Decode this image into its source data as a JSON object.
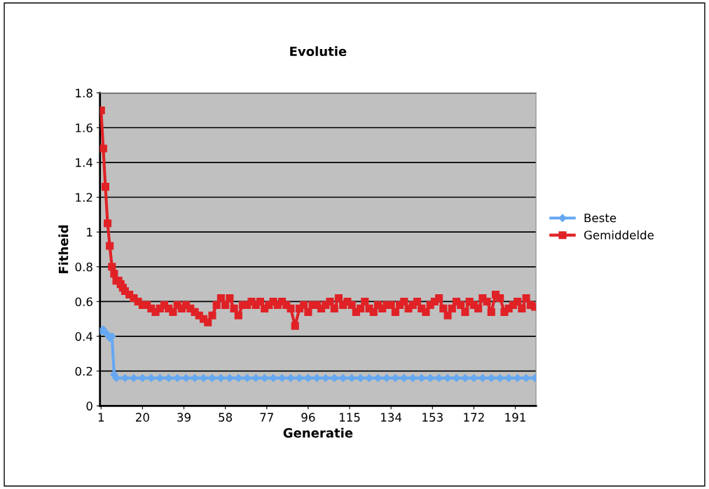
{
  "chart_data": {
    "type": "line",
    "title": "Evolutie",
    "xlabel": "Generatie",
    "ylabel": "Fitheid",
    "x": [
      1,
      2,
      3,
      4,
      5,
      6,
      7,
      8,
      9,
      10,
      11,
      12,
      14,
      16,
      18,
      20,
      22,
      24,
      26,
      28,
      30,
      32,
      34,
      36,
      38,
      40,
      42,
      44,
      46,
      48,
      50,
      52,
      54,
      56,
      58,
      60,
      62,
      64,
      66,
      68,
      70,
      72,
      74,
      76,
      78,
      80,
      82,
      84,
      86,
      88,
      90,
      92,
      94,
      96,
      98,
      100,
      102,
      104,
      106,
      108,
      110,
      112,
      114,
      116,
      118,
      120,
      122,
      124,
      126,
      128,
      130,
      132,
      134,
      136,
      138,
      140,
      142,
      144,
      146,
      148,
      150,
      152,
      154,
      156,
      158,
      160,
      162,
      164,
      166,
      168,
      170,
      172,
      174,
      176,
      178,
      180,
      182,
      184,
      186,
      188,
      190,
      192,
      194,
      196,
      198,
      200
    ],
    "series": [
      {
        "name": "Beste",
        "color": "#66a8f2",
        "marker": "diamond",
        "x": [
          1,
          2,
          3,
          4,
          5,
          6,
          7,
          8,
          12,
          16,
          20,
          24,
          28,
          32,
          36,
          40,
          44,
          48,
          52,
          56,
          60,
          64,
          68,
          72,
          76,
          80,
          84,
          88,
          92,
          96,
          100,
          104,
          108,
          112,
          116,
          120,
          124,
          128,
          132,
          136,
          140,
          144,
          148,
          152,
          156,
          160,
          164,
          168,
          172,
          176,
          180,
          184,
          188,
          192,
          196,
          200
        ],
        "values": [
          0.43,
          0.44,
          0.42,
          0.41,
          0.39,
          0.4,
          0.18,
          0.16,
          0.16,
          0.16,
          0.16,
          0.16,
          0.16,
          0.16,
          0.16,
          0.16,
          0.16,
          0.16,
          0.16,
          0.16,
          0.16,
          0.16,
          0.16,
          0.16,
          0.16,
          0.16,
          0.16,
          0.16,
          0.16,
          0.16,
          0.16,
          0.16,
          0.16,
          0.16,
          0.16,
          0.16,
          0.16,
          0.16,
          0.16,
          0.16,
          0.16,
          0.16,
          0.16,
          0.16,
          0.16,
          0.16,
          0.16,
          0.16,
          0.16,
          0.16,
          0.16,
          0.16,
          0.16,
          0.16,
          0.16,
          0.16
        ]
      },
      {
        "name": "Gemiddelde",
        "color": "#e02226",
        "marker": "square",
        "values": [
          1.7,
          1.48,
          1.26,
          1.05,
          0.92,
          0.8,
          0.76,
          0.72,
          0.72,
          0.7,
          0.68,
          0.66,
          0.64,
          0.62,
          0.6,
          0.58,
          0.58,
          0.56,
          0.54,
          0.56,
          0.58,
          0.56,
          0.54,
          0.58,
          0.56,
          0.58,
          0.56,
          0.54,
          0.52,
          0.5,
          0.48,
          0.52,
          0.58,
          0.62,
          0.58,
          0.62,
          0.56,
          0.52,
          0.58,
          0.58,
          0.6,
          0.58,
          0.6,
          0.56,
          0.58,
          0.6,
          0.58,
          0.6,
          0.58,
          0.56,
          0.46,
          0.56,
          0.58,
          0.54,
          0.58,
          0.58,
          0.56,
          0.58,
          0.6,
          0.56,
          0.62,
          0.58,
          0.6,
          0.58,
          0.54,
          0.56,
          0.6,
          0.56,
          0.54,
          0.58,
          0.56,
          0.58,
          0.58,
          0.54,
          0.58,
          0.6,
          0.56,
          0.58,
          0.6,
          0.56,
          0.54,
          0.58,
          0.6,
          0.62,
          0.56,
          0.52,
          0.56,
          0.6,
          0.58,
          0.54,
          0.6,
          0.58,
          0.56,
          0.62,
          0.6,
          0.54,
          0.64,
          0.62,
          0.54,
          0.56,
          0.58,
          0.6,
          0.56,
          0.62,
          0.58,
          0.57
        ]
      }
    ],
    "xlim": [
      0.5,
      200.5
    ],
    "xticks": [
      1,
      20,
      39,
      58,
      77,
      96,
      115,
      134,
      153,
      172,
      191
    ],
    "ylim": [
      0,
      1.8
    ],
    "yticks": [
      0,
      0.2,
      0.4,
      0.6,
      0.8,
      1,
      1.2,
      1.4,
      1.6,
      1.8
    ],
    "grid": "y",
    "legend": "right"
  }
}
